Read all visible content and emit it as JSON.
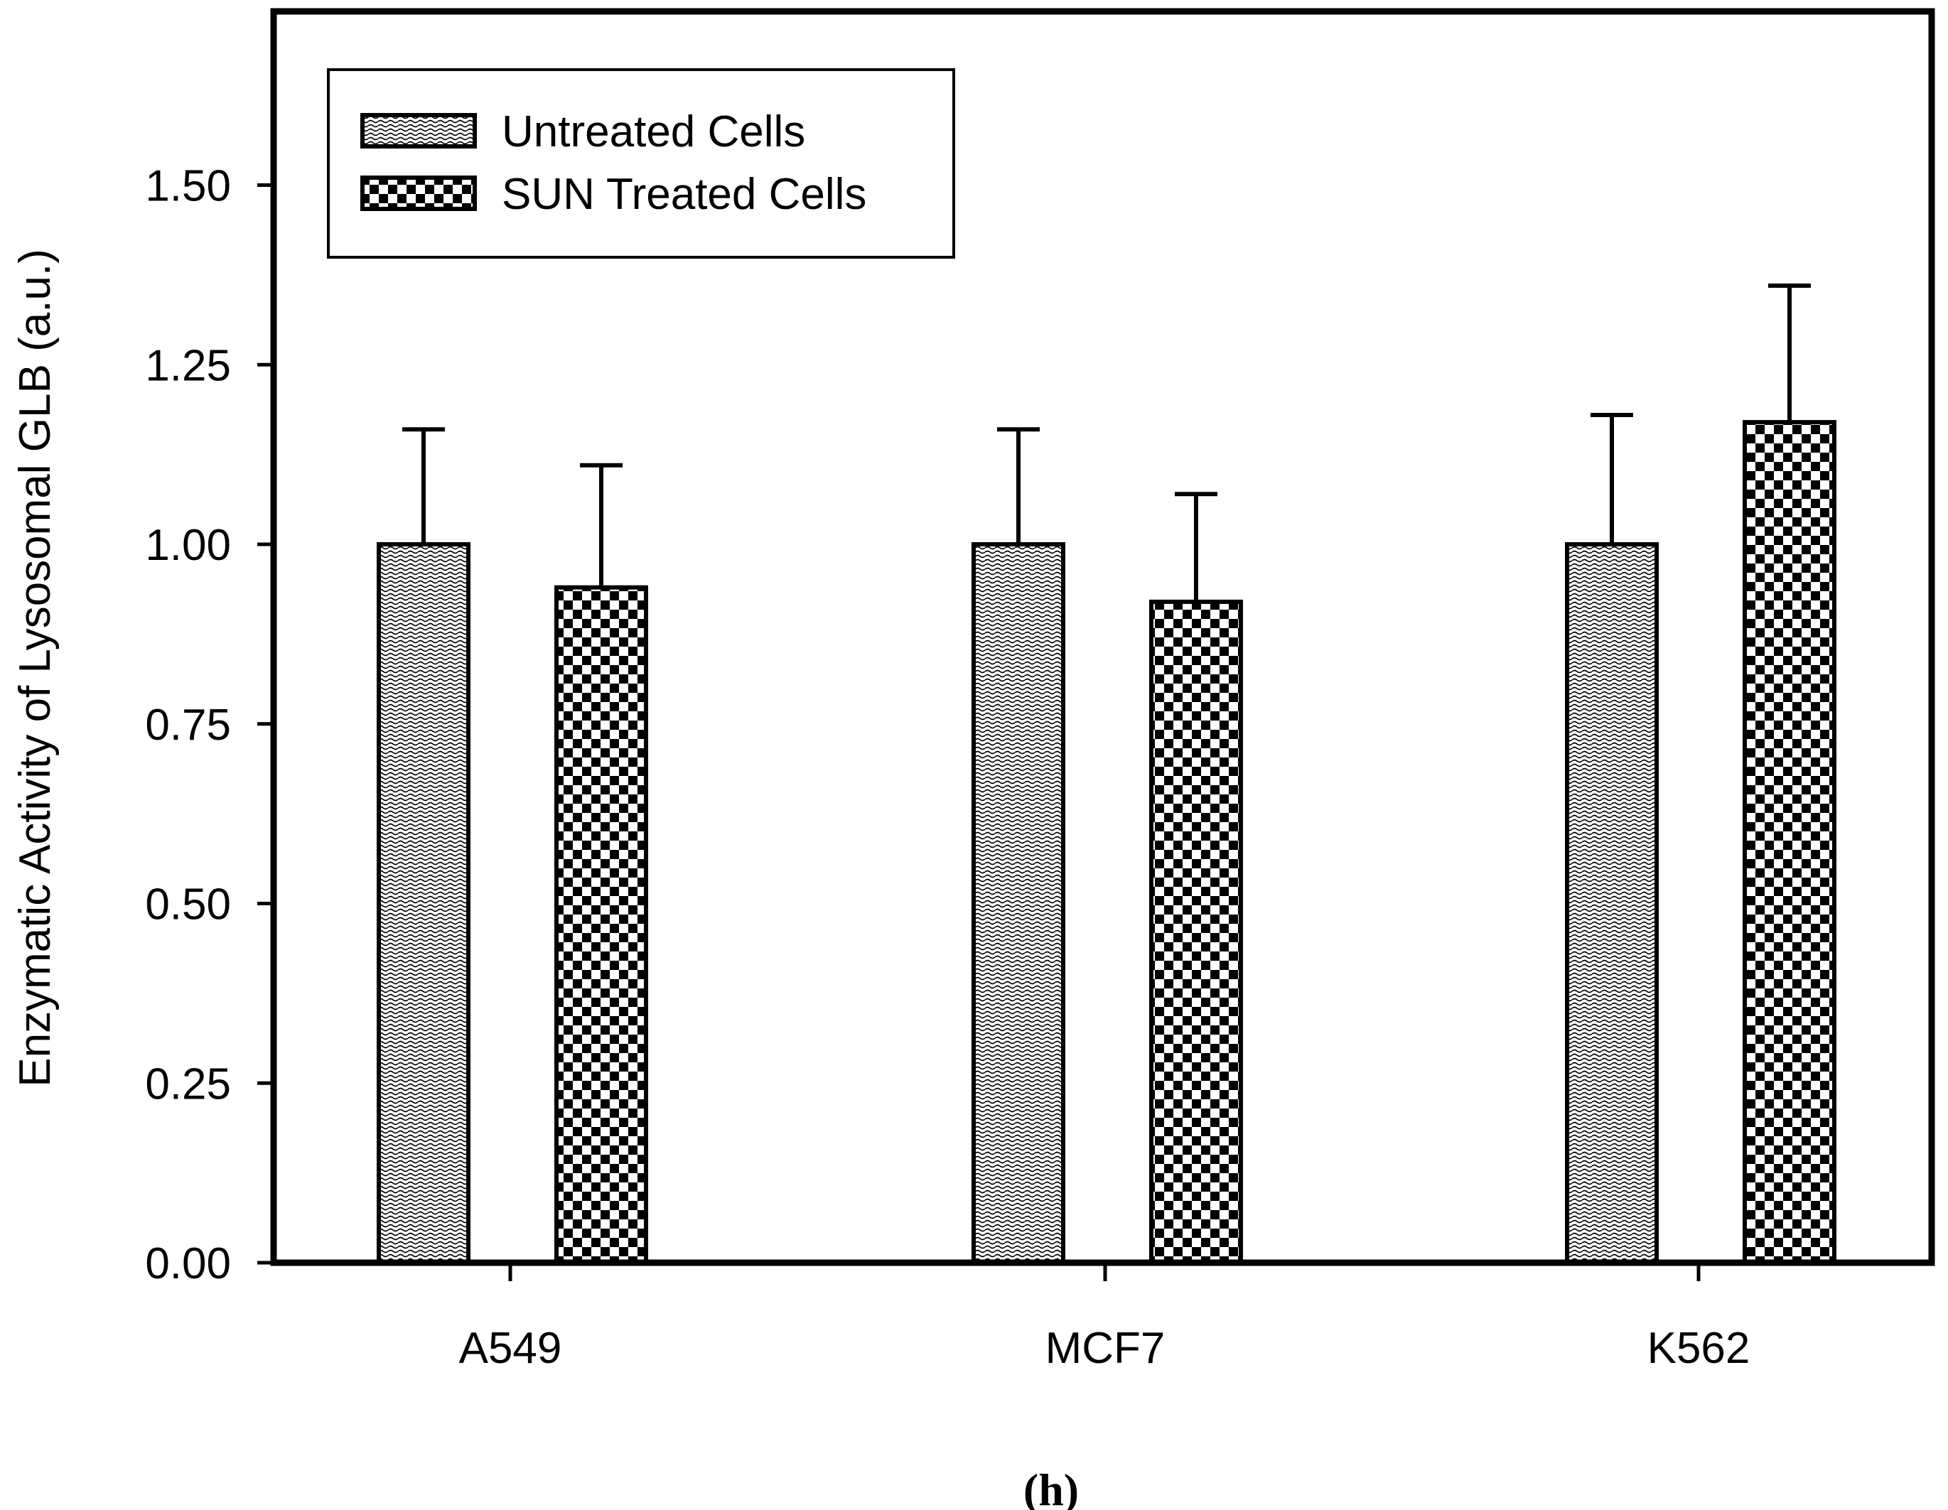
{
  "chart_data": {
    "type": "bar",
    "title": "",
    "xlabel": "",
    "ylabel": "Enzymatic Activity of Lysosomal GLB (a.u.)",
    "categories": [
      "A549",
      "MCF7",
      "K562"
    ],
    "series": [
      {
        "name": "Untreated Cells",
        "pattern": "wave",
        "values": [
          1.0,
          1.0,
          1.0
        ],
        "errors": [
          0.16,
          0.16,
          0.18
        ]
      },
      {
        "name": "SUN Treated Cells",
        "pattern": "checker",
        "values": [
          0.94,
          0.92,
          1.17
        ],
        "errors": [
          0.17,
          0.15,
          0.19
        ]
      }
    ],
    "ylim": [
      0,
      1.73
    ],
    "yticks": [
      "0.00",
      "0.25",
      "0.50",
      "0.75",
      "1.00",
      "1.25",
      "1.50"
    ],
    "legend_position": "top-left",
    "grid": false,
    "caption": "(h)"
  },
  "colors": {
    "ink": "#000000",
    "background": "#ffffff"
  }
}
